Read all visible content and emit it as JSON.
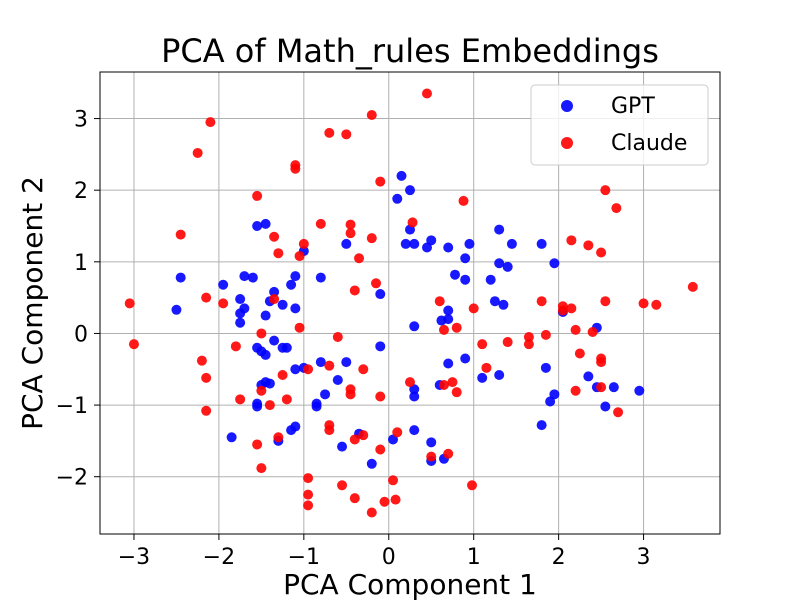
{
  "chart_data": {
    "type": "scatter",
    "title": "PCA of Math_rules Embeddings",
    "xlabel": "PCA Component 1",
    "ylabel": "PCA Component 2",
    "xlim": [
      -3.4,
      3.9
    ],
    "ylim": [
      -2.8,
      3.65
    ],
    "xticks": [
      -3,
      -2,
      -1,
      0,
      1,
      2,
      3
    ],
    "yticks": [
      -2,
      -1,
      0,
      1,
      2,
      3
    ],
    "xtick_labels": [
      "−3",
      "−2",
      "−1",
      "0",
      "1",
      "2",
      "3"
    ],
    "ytick_labels": [
      "−2",
      "−1",
      "0",
      "1",
      "2",
      "3"
    ],
    "grid": true,
    "legend_position": "top-right",
    "series": [
      {
        "name": "GPT",
        "color": "#0000ff",
        "points": [
          [
            0.15,
            2.2
          ],
          [
            0.1,
            1.88
          ],
          [
            0.25,
            2.0
          ],
          [
            0.2,
            1.25
          ],
          [
            0.25,
            1.45
          ],
          [
            0.3,
            1.25
          ],
          [
            0.5,
            1.3
          ],
          [
            0.45,
            1.2
          ],
          [
            0.7,
            1.2
          ],
          [
            0.9,
            1.05
          ],
          [
            0.95,
            1.25
          ],
          [
            1.3,
            1.45
          ],
          [
            1.45,
            1.25
          ],
          [
            1.8,
            1.25
          ],
          [
            1.95,
            0.98
          ],
          [
            1.3,
            0.98
          ],
          [
            1.4,
            0.93
          ],
          [
            1.2,
            0.75
          ],
          [
            0.78,
            0.82
          ],
          [
            0.9,
            0.75
          ],
          [
            0.7,
            0.32
          ],
          [
            0.7,
            0.2
          ],
          [
            0.62,
            0.18
          ],
          [
            1.25,
            0.45
          ],
          [
            1.35,
            0.4
          ],
          [
            0.3,
            0.1
          ],
          [
            2.05,
            0.3
          ],
          [
            2.45,
            0.08
          ],
          [
            1.85,
            -0.48
          ],
          [
            2.35,
            -0.6
          ],
          [
            1.95,
            -0.85
          ],
          [
            1.9,
            -0.95
          ],
          [
            2.45,
            -0.75
          ],
          [
            2.65,
            -0.75
          ],
          [
            2.55,
            -1.02
          ],
          [
            2.95,
            -0.8
          ],
          [
            1.8,
            -1.28
          ],
          [
            1.1,
            -0.62
          ],
          [
            1.3,
            -0.58
          ],
          [
            0.9,
            -0.35
          ],
          [
            0.7,
            -0.42
          ],
          [
            0.6,
            -0.72
          ],
          [
            0.3,
            -0.78
          ],
          [
            0.3,
            -0.88
          ],
          [
            0.3,
            -1.35
          ],
          [
            0.5,
            -1.52
          ],
          [
            0.5,
            -1.78
          ],
          [
            0.65,
            -1.75
          ],
          [
            0.05,
            -1.48
          ],
          [
            -0.1,
            -0.18
          ],
          [
            -0.2,
            -1.82
          ],
          [
            -0.35,
            -1.4
          ],
          [
            -0.55,
            -1.58
          ],
          [
            -0.5,
            -0.4
          ],
          [
            -0.6,
            -0.65
          ],
          [
            -0.8,
            -0.4
          ],
          [
            -0.75,
            -0.85
          ],
          [
            -0.85,
            -0.98
          ],
          [
            -0.85,
            -1.02
          ],
          [
            -1.0,
            -0.48
          ],
          [
            -1.1,
            -0.5
          ],
          [
            -1.2,
            -0.2
          ],
          [
            -1.1,
            -1.3
          ],
          [
            -1.15,
            -1.35
          ],
          [
            -1.3,
            -1.5
          ],
          [
            -1.4,
            -0.7
          ],
          [
            -1.45,
            -0.68
          ],
          [
            -1.5,
            -0.72
          ],
          [
            -1.55,
            -1.02
          ],
          [
            -1.55,
            -0.98
          ],
          [
            -1.55,
            -0.2
          ],
          [
            -1.5,
            -0.25
          ],
          [
            -1.45,
            -0.3
          ],
          [
            -1.35,
            -0.1
          ],
          [
            -1.25,
            -0.2
          ],
          [
            -1.85,
            -1.45
          ],
          [
            -1.75,
            0.15
          ],
          [
            -1.7,
            0.35
          ],
          [
            -1.75,
            0.48
          ],
          [
            -1.7,
            0.8
          ],
          [
            -1.6,
            0.78
          ],
          [
            -1.75,
            0.28
          ],
          [
            -1.55,
            1.5
          ],
          [
            -1.45,
            1.53
          ],
          [
            -1.35,
            0.58
          ],
          [
            -1.4,
            0.45
          ],
          [
            -1.45,
            0.25
          ],
          [
            -1.25,
            0.4
          ],
          [
            -1.15,
            0.68
          ],
          [
            -1.1,
            0.8
          ],
          [
            -1.0,
            1.15
          ],
          [
            -1.1,
            0.35
          ],
          [
            -0.8,
            0.78
          ],
          [
            -0.5,
            1.25
          ],
          [
            -0.1,
            0.55
          ],
          [
            -2.45,
            0.78
          ],
          [
            -2.5,
            0.33
          ],
          [
            -1.95,
            0.68
          ]
        ]
      },
      {
        "name": "Claude",
        "color": "#ff0000",
        "points": [
          [
            0.45,
            3.35
          ],
          [
            -0.2,
            3.05
          ],
          [
            -0.7,
            2.8
          ],
          [
            -0.5,
            2.78
          ],
          [
            -2.1,
            2.95
          ],
          [
            -2.25,
            2.52
          ],
          [
            -1.1,
            2.35
          ],
          [
            -1.1,
            2.3
          ],
          [
            -0.1,
            2.12
          ],
          [
            -1.55,
            1.92
          ],
          [
            -0.45,
            1.52
          ],
          [
            -0.45,
            1.4
          ],
          [
            -0.2,
            1.33
          ],
          [
            -0.8,
            1.53
          ],
          [
            -1.35,
            1.35
          ],
          [
            -1.0,
            1.25
          ],
          [
            -1.05,
            1.08
          ],
          [
            -1.3,
            1.12
          ],
          [
            -0.35,
            1.05
          ],
          [
            -2.45,
            1.38
          ],
          [
            -0.4,
            0.6
          ],
          [
            -0.15,
            0.7
          ],
          [
            0.28,
            1.55
          ],
          [
            0.88,
            1.85
          ],
          [
            2.68,
            1.75
          ],
          [
            2.55,
            2.0
          ],
          [
            2.15,
            1.3
          ],
          [
            2.35,
            1.23
          ],
          [
            2.5,
            1.13
          ],
          [
            2.05,
            0.38
          ],
          [
            2.05,
            0.32
          ],
          [
            2.15,
            0.35
          ],
          [
            2.55,
            0.45
          ],
          [
            2.4,
            0.02
          ],
          [
            1.8,
            0.45
          ],
          [
            2.2,
            0.05
          ],
          [
            3.0,
            0.42
          ],
          [
            3.15,
            0.4
          ],
          [
            3.58,
            0.65
          ],
          [
            1.65,
            -0.05
          ],
          [
            1.65,
            -0.15
          ],
          [
            1.85,
            -0.02
          ],
          [
            1.4,
            -0.12
          ],
          [
            1.1,
            -0.15
          ],
          [
            1.15,
            -0.48
          ],
          [
            2.25,
            -0.28
          ],
          [
            2.5,
            -0.35
          ],
          [
            2.5,
            -0.4
          ],
          [
            2.5,
            -0.75
          ],
          [
            2.2,
            -0.8
          ],
          [
            2.7,
            -1.1
          ],
          [
            0.6,
            0.45
          ],
          [
            0.65,
            0.05
          ],
          [
            0.8,
            0.08
          ],
          [
            1.0,
            0.35
          ],
          [
            0.75,
            -0.68
          ],
          [
            0.8,
            -0.82
          ],
          [
            0.65,
            -0.72
          ],
          [
            0.25,
            -0.68
          ],
          [
            0.1,
            -1.38
          ],
          [
            0.5,
            -1.72
          ],
          [
            0.7,
            -1.68
          ],
          [
            0.98,
            -2.12
          ],
          [
            -0.1,
            -1.62
          ],
          [
            0.05,
            -2.05
          ],
          [
            0.08,
            -2.32
          ],
          [
            -0.05,
            -2.35
          ],
          [
            -0.2,
            -2.5
          ],
          [
            -0.4,
            -2.3
          ],
          [
            -0.55,
            -2.12
          ],
          [
            -0.4,
            -1.48
          ],
          [
            -0.3,
            -1.42
          ],
          [
            -0.7,
            -1.28
          ],
          [
            -0.7,
            -1.35
          ],
          [
            -0.45,
            -0.85
          ],
          [
            -0.45,
            -0.78
          ],
          [
            -0.3,
            -0.5
          ],
          [
            -0.7,
            -0.45
          ],
          [
            -0.6,
            -0.05
          ],
          [
            -0.95,
            -0.5
          ],
          [
            -1.05,
            0.08
          ],
          [
            -1.25,
            -0.58
          ],
          [
            -1.2,
            -0.92
          ],
          [
            -1.4,
            -1.0
          ],
          [
            -1.5,
            -0.8
          ],
          [
            -1.55,
            -1.55
          ],
          [
            -1.3,
            -1.45
          ],
          [
            -1.5,
            -1.88
          ],
          [
            -0.95,
            -2.02
          ],
          [
            -0.95,
            -2.25
          ],
          [
            -0.95,
            -2.4
          ],
          [
            -1.75,
            -0.92
          ],
          [
            -1.5,
            0.0
          ],
          [
            -1.35,
            0.48
          ],
          [
            -1.8,
            -0.18
          ],
          [
            -1.95,
            0.42
          ],
          [
            -2.15,
            0.5
          ],
          [
            -2.2,
            -0.38
          ],
          [
            -2.15,
            -0.62
          ],
          [
            -2.15,
            -1.08
          ],
          [
            -3.05,
            0.42
          ],
          [
            -3.0,
            -0.15
          ],
          [
            -0.1,
            -0.88
          ]
        ]
      }
    ]
  }
}
